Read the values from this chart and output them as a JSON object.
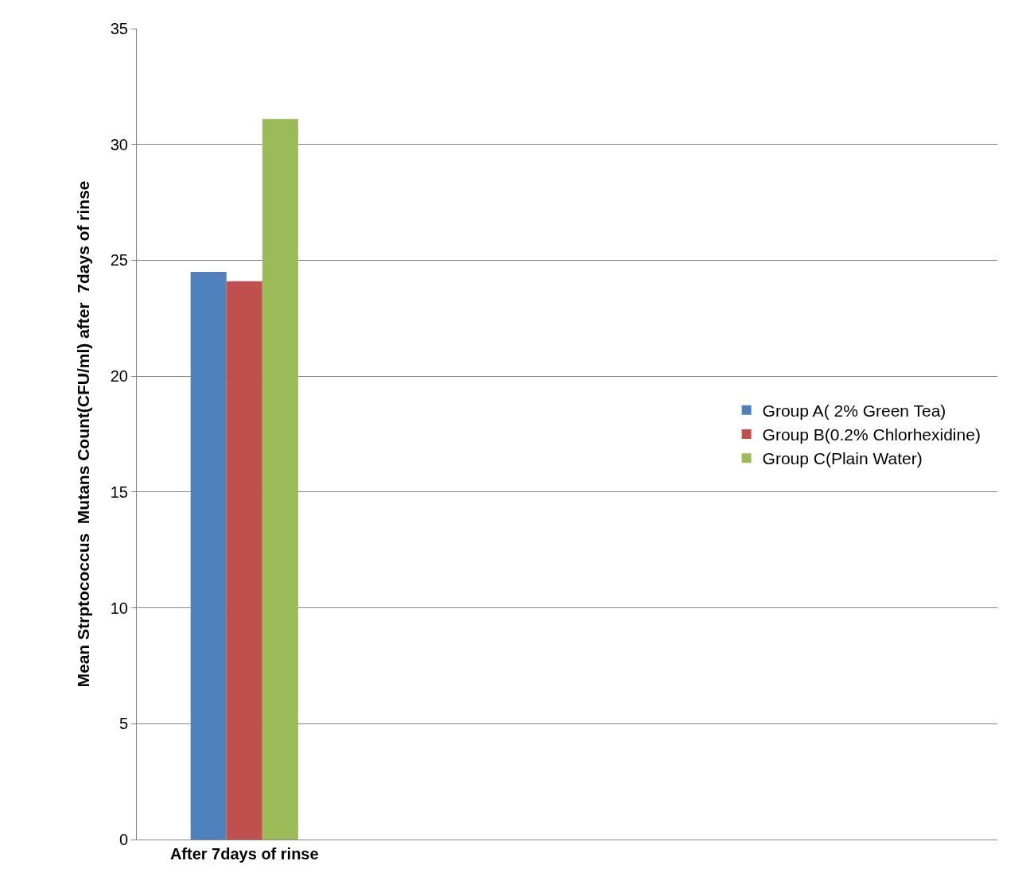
{
  "chart_data": {
    "type": "bar",
    "ylabel": "Mean Strptococcus  Mutans Count(CFU/ml) after  7days of rinse",
    "categories": [
      "After 7days of rinse"
    ],
    "series": [
      {
        "name": "Group A( 2% Green Tea)",
        "color": "#4f81bd",
        "values": [
          24.5
        ]
      },
      {
        "name": "Group B(0.2% Chlorhexidine)",
        "color": "#c0504d",
        "values": [
          24.1
        ]
      },
      {
        "name": "Group C(Plain Water)",
        "color": "#9bbb59",
        "values": [
          31.1
        ]
      }
    ],
    "ylim": [
      0,
      35
    ],
    "yticks": [
      0,
      5,
      10,
      15,
      20,
      25,
      30,
      35
    ],
    "grid": "y",
    "legend": "right"
  }
}
